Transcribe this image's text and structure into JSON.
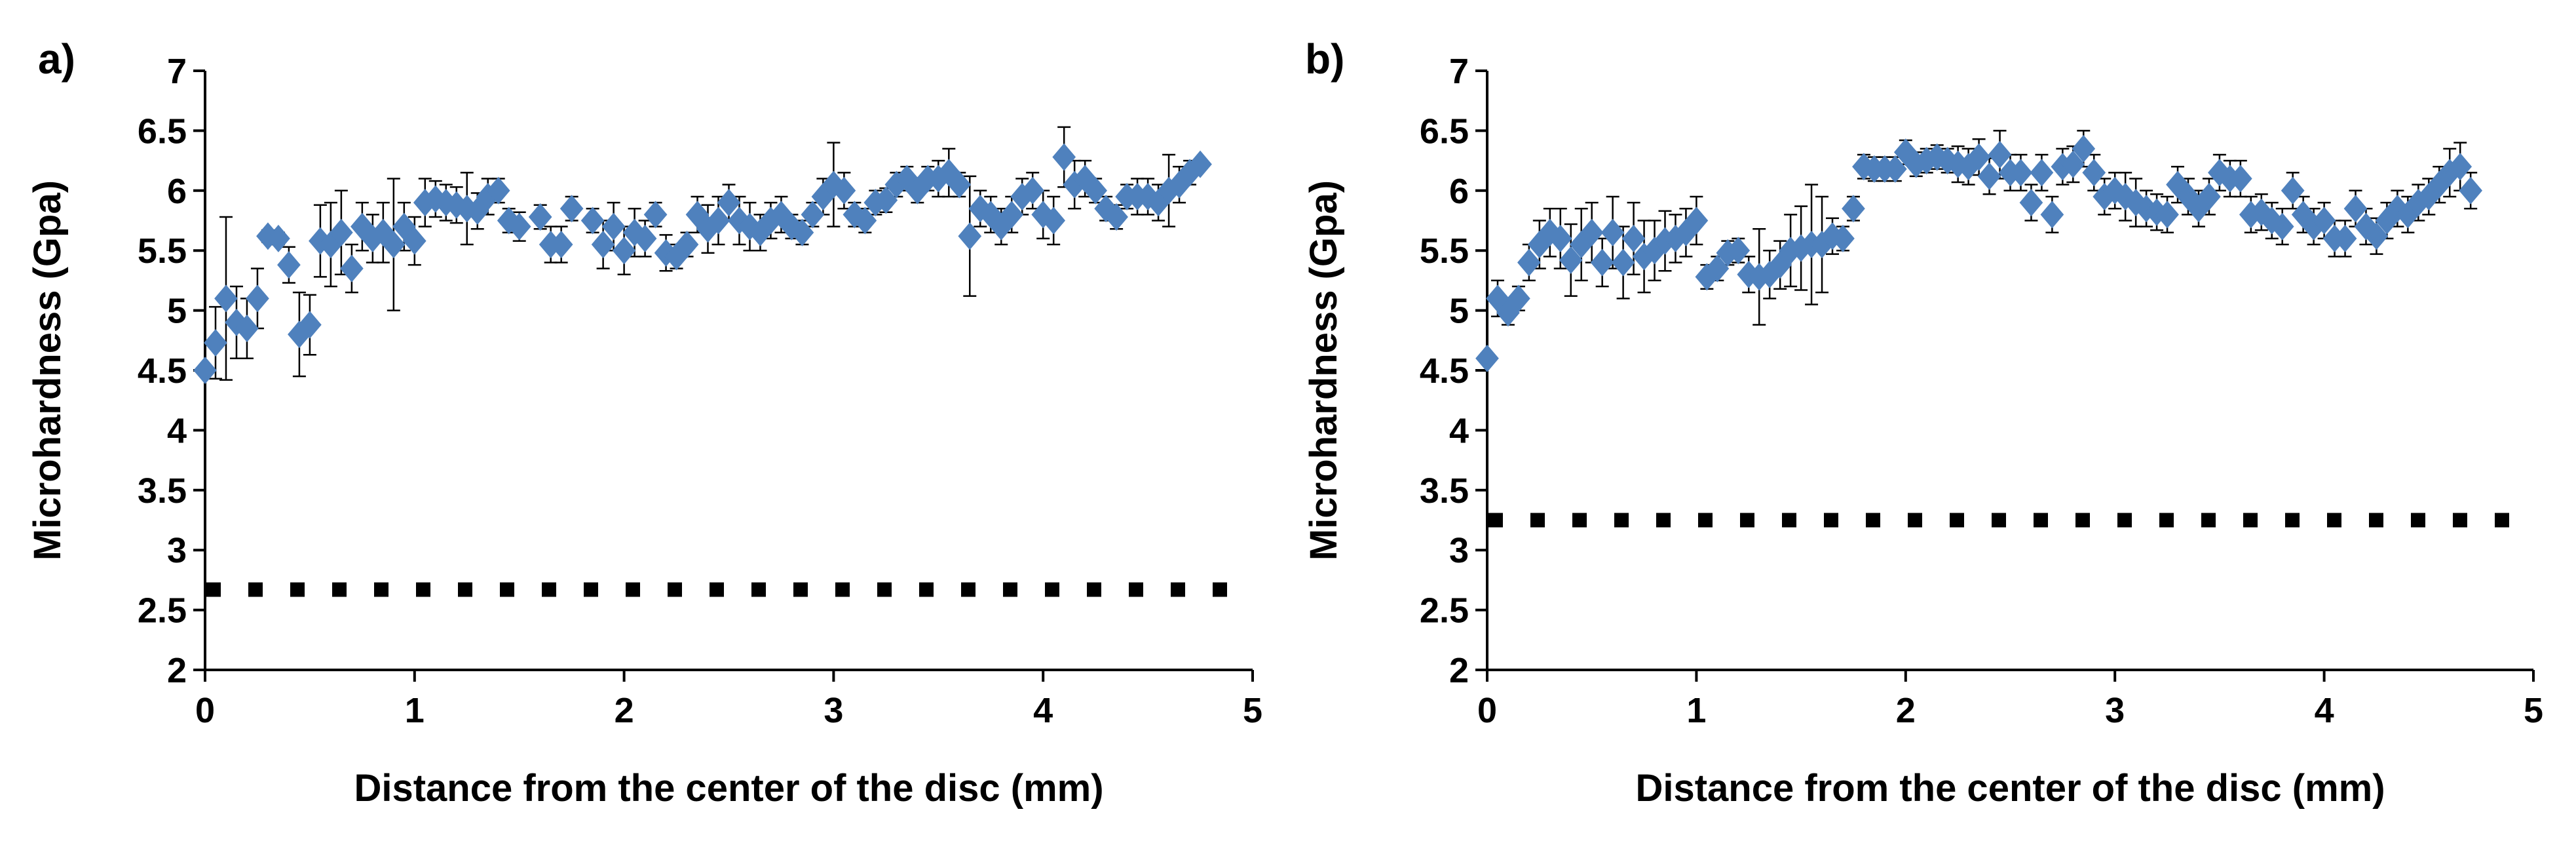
{
  "colors": {
    "marker": "#4F81BD",
    "axis": "#000000",
    "error_bar": "#000000",
    "reference_line": "#000000"
  },
  "chart_data": [
    {
      "type": "scatter",
      "panel_label": "a)",
      "xlabel": "Distance from the center of the disc (mm)",
      "ylabel": "Microhardness (Gpa)",
      "xlim": [
        0,
        5
      ],
      "ylim": [
        2,
        7
      ],
      "xticks": [
        "0",
        "1",
        "2",
        "3",
        "4",
        "5"
      ],
      "yticks": [
        "2",
        "2.5",
        "3",
        "3.5",
        "4",
        "4.5",
        "5",
        "5.5",
        "6",
        "6.5",
        "7"
      ],
      "grid": false,
      "reference_line": {
        "label": "",
        "y": 2.67,
        "style": "dotted-square"
      },
      "points": [
        {
          "x": 0.0,
          "y": 4.5,
          "err": 0.0
        },
        {
          "x": 0.05,
          "y": 4.73,
          "err": 0.3
        },
        {
          "x": 0.1,
          "y": 5.1,
          "err": 0.68
        },
        {
          "x": 0.15,
          "y": 4.9,
          "err": 0.3
        },
        {
          "x": 0.2,
          "y": 4.85,
          "err": 0.25
        },
        {
          "x": 0.25,
          "y": 5.1,
          "err": 0.25
        },
        {
          "x": 0.3,
          "y": 5.62,
          "err": 0.05
        },
        {
          "x": 0.35,
          "y": 5.6,
          "err": 0.05
        },
        {
          "x": 0.4,
          "y": 5.38,
          "err": 0.15
        },
        {
          "x": 0.45,
          "y": 4.8,
          "err": 0.35
        },
        {
          "x": 0.5,
          "y": 4.88,
          "err": 0.25
        },
        {
          "x": 0.55,
          "y": 5.58,
          "err": 0.3
        },
        {
          "x": 0.6,
          "y": 5.55,
          "err": 0.35
        },
        {
          "x": 0.65,
          "y": 5.65,
          "err": 0.35
        },
        {
          "x": 0.7,
          "y": 5.35,
          "err": 0.2
        },
        {
          "x": 0.75,
          "y": 5.7,
          "err": 0.2
        },
        {
          "x": 0.8,
          "y": 5.6,
          "err": 0.2
        },
        {
          "x": 0.85,
          "y": 5.65,
          "err": 0.25
        },
        {
          "x": 0.9,
          "y": 5.55,
          "err": 0.55
        },
        {
          "x": 0.95,
          "y": 5.7,
          "err": 0.2
        },
        {
          "x": 1.0,
          "y": 5.58,
          "err": 0.2
        },
        {
          "x": 1.05,
          "y": 5.9,
          "err": 0.2
        },
        {
          "x": 1.1,
          "y": 5.93,
          "err": 0.15
        },
        {
          "x": 1.15,
          "y": 5.9,
          "err": 0.15
        },
        {
          "x": 1.2,
          "y": 5.88,
          "err": 0.15
        },
        {
          "x": 1.25,
          "y": 5.85,
          "err": 0.3
        },
        {
          "x": 1.3,
          "y": 5.83,
          "err": 0.15
        },
        {
          "x": 1.35,
          "y": 5.95,
          "err": 0.15
        },
        {
          "x": 1.4,
          "y": 6.0,
          "err": 0.1
        },
        {
          "x": 1.45,
          "y": 5.75,
          "err": 0.1
        },
        {
          "x": 1.5,
          "y": 5.7,
          "err": 0.12
        },
        {
          "x": 1.6,
          "y": 5.78,
          "err": 0.1
        },
        {
          "x": 1.65,
          "y": 5.55,
          "err": 0.15
        },
        {
          "x": 1.7,
          "y": 5.55,
          "err": 0.15
        },
        {
          "x": 1.75,
          "y": 5.85,
          "err": 0.1
        },
        {
          "x": 1.85,
          "y": 5.75,
          "err": 0.1
        },
        {
          "x": 1.9,
          "y": 5.55,
          "err": 0.2
        },
        {
          "x": 1.95,
          "y": 5.7,
          "err": 0.2
        },
        {
          "x": 2.0,
          "y": 5.5,
          "err": 0.2
        },
        {
          "x": 2.05,
          "y": 5.65,
          "err": 0.2
        },
        {
          "x": 2.1,
          "y": 5.6,
          "err": 0.15
        },
        {
          "x": 2.15,
          "y": 5.8,
          "err": 0.1
        },
        {
          "x": 2.2,
          "y": 5.48,
          "err": 0.15
        },
        {
          "x": 2.25,
          "y": 5.45,
          "err": 0.1
        },
        {
          "x": 2.3,
          "y": 5.55,
          "err": 0.1
        },
        {
          "x": 2.35,
          "y": 5.8,
          "err": 0.15
        },
        {
          "x": 2.4,
          "y": 5.68,
          "err": 0.2
        },
        {
          "x": 2.45,
          "y": 5.75,
          "err": 0.2
        },
        {
          "x": 2.5,
          "y": 5.9,
          "err": 0.15
        },
        {
          "x": 2.55,
          "y": 5.75,
          "err": 0.2
        },
        {
          "x": 2.6,
          "y": 5.7,
          "err": 0.2
        },
        {
          "x": 2.65,
          "y": 5.65,
          "err": 0.15
        },
        {
          "x": 2.7,
          "y": 5.75,
          "err": 0.15
        },
        {
          "x": 2.75,
          "y": 5.8,
          "err": 0.15
        },
        {
          "x": 2.8,
          "y": 5.7,
          "err": 0.1
        },
        {
          "x": 2.85,
          "y": 5.65,
          "err": 0.1
        },
        {
          "x": 2.9,
          "y": 5.8,
          "err": 0.1
        },
        {
          "x": 2.95,
          "y": 5.95,
          "err": 0.15
        },
        {
          "x": 3.0,
          "y": 6.05,
          "err": 0.35
        },
        {
          "x": 3.05,
          "y": 6.0,
          "err": 0.15
        },
        {
          "x": 3.1,
          "y": 5.8,
          "err": 0.1
        },
        {
          "x": 3.15,
          "y": 5.75,
          "err": 0.1
        },
        {
          "x": 3.2,
          "y": 5.9,
          "err": 0.1
        },
        {
          "x": 3.25,
          "y": 5.92,
          "err": 0.1
        },
        {
          "x": 3.3,
          "y": 6.05,
          "err": 0.1
        },
        {
          "x": 3.35,
          "y": 6.1,
          "err": 0.1
        },
        {
          "x": 3.4,
          "y": 6.0,
          "err": 0.1
        },
        {
          "x": 3.45,
          "y": 6.1,
          "err": 0.1
        },
        {
          "x": 3.5,
          "y": 6.1,
          "err": 0.15
        },
        {
          "x": 3.55,
          "y": 6.15,
          "err": 0.2
        },
        {
          "x": 3.6,
          "y": 6.05,
          "err": 0.1
        },
        {
          "x": 3.65,
          "y": 5.62,
          "err": 0.5
        },
        {
          "x": 3.7,
          "y": 5.85,
          "err": 0.15
        },
        {
          "x": 3.75,
          "y": 5.8,
          "err": 0.15
        },
        {
          "x": 3.8,
          "y": 5.7,
          "err": 0.15
        },
        {
          "x": 3.85,
          "y": 5.8,
          "err": 0.15
        },
        {
          "x": 3.9,
          "y": 5.95,
          "err": 0.15
        },
        {
          "x": 3.95,
          "y": 6.0,
          "err": 0.15
        },
        {
          "x": 4.0,
          "y": 5.8,
          "err": 0.2
        },
        {
          "x": 4.05,
          "y": 5.75,
          "err": 0.2
        },
        {
          "x": 4.1,
          "y": 6.28,
          "err": 0.25
        },
        {
          "x": 4.15,
          "y": 6.05,
          "err": 0.2
        },
        {
          "x": 4.2,
          "y": 6.1,
          "err": 0.15
        },
        {
          "x": 4.25,
          "y": 6.0,
          "err": 0.1
        },
        {
          "x": 4.3,
          "y": 5.85,
          "err": 0.1
        },
        {
          "x": 4.35,
          "y": 5.78,
          "err": 0.1
        },
        {
          "x": 4.4,
          "y": 5.95,
          "err": 0.1
        },
        {
          "x": 4.45,
          "y": 5.95,
          "err": 0.15
        },
        {
          "x": 4.5,
          "y": 5.95,
          "err": 0.15
        },
        {
          "x": 4.55,
          "y": 5.9,
          "err": 0.15
        },
        {
          "x": 4.6,
          "y": 6.0,
          "err": 0.3
        },
        {
          "x": 4.65,
          "y": 6.05,
          "err": 0.15
        },
        {
          "x": 4.7,
          "y": 6.15,
          "err": 0.1
        },
        {
          "x": 4.75,
          "y": 6.22,
          "err": 0.0
        }
      ]
    },
    {
      "type": "scatter",
      "panel_label": "b)",
      "xlabel": "Distance from the center of the disc (mm)",
      "ylabel": "Microhardness (Gpa)",
      "xlim": [
        0,
        5
      ],
      "ylim": [
        2,
        7
      ],
      "xticks": [
        "0",
        "1",
        "2",
        "3",
        "4",
        "5"
      ],
      "yticks": [
        "2",
        "2.5",
        "3",
        "3.5",
        "4",
        "4.5",
        "5",
        "5.5",
        "6",
        "6.5",
        "7"
      ],
      "grid": false,
      "reference_line": {
        "label": "",
        "y": 3.25,
        "style": "dotted-square"
      },
      "points": [
        {
          "x": 0.0,
          "y": 4.6,
          "err": 0.0
        },
        {
          "x": 0.05,
          "y": 5.1,
          "err": 0.15
        },
        {
          "x": 0.1,
          "y": 4.98,
          "err": 0.1
        },
        {
          "x": 0.15,
          "y": 5.1,
          "err": 0.1
        },
        {
          "x": 0.2,
          "y": 5.4,
          "err": 0.15
        },
        {
          "x": 0.25,
          "y": 5.55,
          "err": 0.2
        },
        {
          "x": 0.3,
          "y": 5.65,
          "err": 0.2
        },
        {
          "x": 0.35,
          "y": 5.6,
          "err": 0.25
        },
        {
          "x": 0.4,
          "y": 5.42,
          "err": 0.3
        },
        {
          "x": 0.45,
          "y": 5.55,
          "err": 0.3
        },
        {
          "x": 0.5,
          "y": 5.65,
          "err": 0.25
        },
        {
          "x": 0.55,
          "y": 5.4,
          "err": 0.2
        },
        {
          "x": 0.6,
          "y": 5.65,
          "err": 0.3
        },
        {
          "x": 0.65,
          "y": 5.4,
          "err": 0.3
        },
        {
          "x": 0.7,
          "y": 5.6,
          "err": 0.3
        },
        {
          "x": 0.75,
          "y": 5.45,
          "err": 0.3
        },
        {
          "x": 0.8,
          "y": 5.5,
          "err": 0.25
        },
        {
          "x": 0.85,
          "y": 5.58,
          "err": 0.25
        },
        {
          "x": 0.9,
          "y": 5.6,
          "err": 0.2
        },
        {
          "x": 0.95,
          "y": 5.65,
          "err": 0.2
        },
        {
          "x": 1.0,
          "y": 5.75,
          "err": 0.2
        },
        {
          "x": 1.05,
          "y": 5.28,
          "err": 0.1
        },
        {
          "x": 1.1,
          "y": 5.35,
          "err": 0.1
        },
        {
          "x": 1.15,
          "y": 5.48,
          "err": 0.1
        },
        {
          "x": 1.2,
          "y": 5.5,
          "err": 0.1
        },
        {
          "x": 1.25,
          "y": 5.3,
          "err": 0.15
        },
        {
          "x": 1.3,
          "y": 5.28,
          "err": 0.4
        },
        {
          "x": 1.35,
          "y": 5.3,
          "err": 0.2
        },
        {
          "x": 1.4,
          "y": 5.38,
          "err": 0.2
        },
        {
          "x": 1.45,
          "y": 5.5,
          "err": 0.3
        },
        {
          "x": 1.5,
          "y": 5.52,
          "err": 0.35
        },
        {
          "x": 1.55,
          "y": 5.55,
          "err": 0.5
        },
        {
          "x": 1.6,
          "y": 5.55,
          "err": 0.4
        },
        {
          "x": 1.65,
          "y": 5.62,
          "err": 0.15
        },
        {
          "x": 1.7,
          "y": 5.6,
          "err": 0.1
        },
        {
          "x": 1.75,
          "y": 5.85,
          "err": 0.1
        },
        {
          "x": 1.8,
          "y": 6.2,
          "err": 0.1
        },
        {
          "x": 1.85,
          "y": 6.18,
          "err": 0.1
        },
        {
          "x": 1.9,
          "y": 6.18,
          "err": 0.1
        },
        {
          "x": 1.95,
          "y": 6.18,
          "err": 0.1
        },
        {
          "x": 2.0,
          "y": 6.32,
          "err": 0.1
        },
        {
          "x": 2.05,
          "y": 6.22,
          "err": 0.1
        },
        {
          "x": 2.1,
          "y": 6.25,
          "err": 0.1
        },
        {
          "x": 2.15,
          "y": 6.28,
          "err": 0.1
        },
        {
          "x": 2.2,
          "y": 6.25,
          "err": 0.1
        },
        {
          "x": 2.25,
          "y": 6.22,
          "err": 0.15
        },
        {
          "x": 2.3,
          "y": 6.2,
          "err": 0.15
        },
        {
          "x": 2.35,
          "y": 6.28,
          "err": 0.15
        },
        {
          "x": 2.4,
          "y": 6.12,
          "err": 0.15
        },
        {
          "x": 2.45,
          "y": 6.3,
          "err": 0.2
        },
        {
          "x": 2.5,
          "y": 6.15,
          "err": 0.15
        },
        {
          "x": 2.55,
          "y": 6.15,
          "err": 0.15
        },
        {
          "x": 2.6,
          "y": 5.9,
          "err": 0.15
        },
        {
          "x": 2.65,
          "y": 6.15,
          "err": 0.15
        },
        {
          "x": 2.7,
          "y": 5.8,
          "err": 0.15
        },
        {
          "x": 2.75,
          "y": 6.2,
          "err": 0.15
        },
        {
          "x": 2.8,
          "y": 6.22,
          "err": 0.15
        },
        {
          "x": 2.85,
          "y": 6.35,
          "err": 0.15
        },
        {
          "x": 2.9,
          "y": 6.15,
          "err": 0.15
        },
        {
          "x": 2.95,
          "y": 5.95,
          "err": 0.15
        },
        {
          "x": 3.0,
          "y": 6.0,
          "err": 0.15
        },
        {
          "x": 3.05,
          "y": 5.95,
          "err": 0.2
        },
        {
          "x": 3.1,
          "y": 5.9,
          "err": 0.2
        },
        {
          "x": 3.15,
          "y": 5.85,
          "err": 0.15
        },
        {
          "x": 3.2,
          "y": 5.82,
          "err": 0.15
        },
        {
          "x": 3.25,
          "y": 5.8,
          "err": 0.15
        },
        {
          "x": 3.3,
          "y": 6.05,
          "err": 0.15
        },
        {
          "x": 3.35,
          "y": 5.95,
          "err": 0.15
        },
        {
          "x": 3.4,
          "y": 5.85,
          "err": 0.15
        },
        {
          "x": 3.45,
          "y": 5.95,
          "err": 0.15
        },
        {
          "x": 3.5,
          "y": 6.15,
          "err": 0.15
        },
        {
          "x": 3.55,
          "y": 6.1,
          "err": 0.15
        },
        {
          "x": 3.6,
          "y": 6.1,
          "err": 0.15
        },
        {
          "x": 3.65,
          "y": 5.8,
          "err": 0.15
        },
        {
          "x": 3.7,
          "y": 5.82,
          "err": 0.15
        },
        {
          "x": 3.75,
          "y": 5.75,
          "err": 0.15
        },
        {
          "x": 3.8,
          "y": 5.7,
          "err": 0.15
        },
        {
          "x": 3.85,
          "y": 6.0,
          "err": 0.15
        },
        {
          "x": 3.9,
          "y": 5.8,
          "err": 0.15
        },
        {
          "x": 3.95,
          "y": 5.7,
          "err": 0.15
        },
        {
          "x": 4.0,
          "y": 5.75,
          "err": 0.15
        },
        {
          "x": 4.05,
          "y": 5.6,
          "err": 0.15
        },
        {
          "x": 4.1,
          "y": 5.6,
          "err": 0.15
        },
        {
          "x": 4.15,
          "y": 5.85,
          "err": 0.15
        },
        {
          "x": 4.2,
          "y": 5.7,
          "err": 0.15
        },
        {
          "x": 4.25,
          "y": 5.62,
          "err": 0.15
        },
        {
          "x": 4.3,
          "y": 5.75,
          "err": 0.15
        },
        {
          "x": 4.35,
          "y": 5.85,
          "err": 0.15
        },
        {
          "x": 4.4,
          "y": 5.8,
          "err": 0.15
        },
        {
          "x": 4.45,
          "y": 5.9,
          "err": 0.15
        },
        {
          "x": 4.5,
          "y": 5.95,
          "err": 0.15
        },
        {
          "x": 4.55,
          "y": 6.05,
          "err": 0.15
        },
        {
          "x": 4.6,
          "y": 6.15,
          "err": 0.2
        },
        {
          "x": 4.65,
          "y": 6.2,
          "err": 0.2
        },
        {
          "x": 4.7,
          "y": 6.0,
          "err": 0.15
        }
      ]
    }
  ]
}
